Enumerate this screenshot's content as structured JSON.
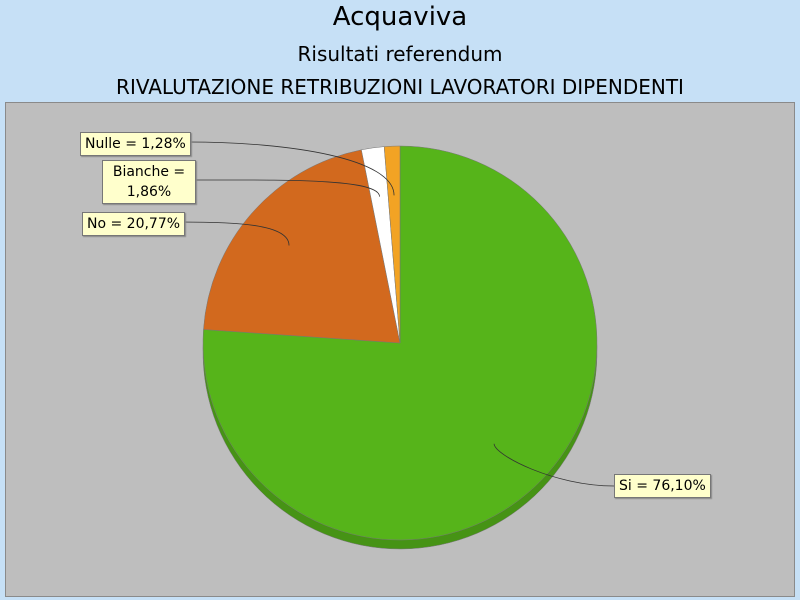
{
  "chart_data": {
    "type": "pie",
    "title": "Acquaviva",
    "subtitles": [
      "Risultati referendum",
      "RIVALUTAZIONE RETRIBUZIONI LAVORATORI DIPENDENTI"
    ],
    "values": [
      76.1,
      20.77,
      1.86,
      1.28
    ],
    "value_labels": [
      "Si = 76,10%",
      "No = 20,77%",
      "Bianche = 1,86%",
      "Nulle = 1,28%"
    ],
    "colors": [
      "#56b41a",
      "#d2691e",
      "#ffffff",
      "#f2a324"
    ]
  }
}
